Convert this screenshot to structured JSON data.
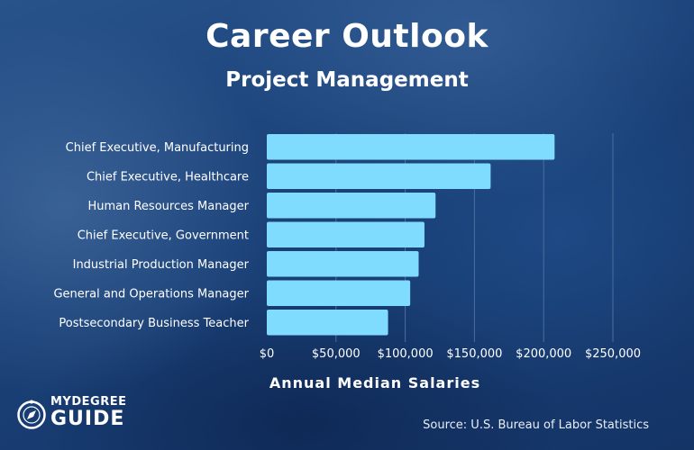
{
  "header": {
    "title": "Career Outlook",
    "subtitle": "Project Management"
  },
  "chart_data": {
    "type": "bar",
    "orientation": "horizontal",
    "categories": [
      "Chief Executive, Manufacturing",
      "Chief Executive, Healthcare",
      "Human Resources Manager",
      "Chief Executive, Government",
      "Industrial Production Manager",
      "General and Operations Manager",
      "Postsecondary Business Teacher"
    ],
    "values": [
      207900,
      161700,
      121900,
      113900,
      109700,
      103600,
      87600
    ],
    "xlim": [
      0,
      250000
    ],
    "xticks": [
      0,
      50000,
      100000,
      150000,
      200000,
      250000
    ],
    "xtick_labels": [
      "$0",
      "$50,000",
      "$100,000",
      "$150,000",
      "$200,000",
      "$250,000"
    ],
    "xlabel": "Annual Median Salaries",
    "grid": true,
    "bar_color": "#7fdcff"
  },
  "footer": {
    "source": "Source: U.S. Bureau of Labor Statistics",
    "logo_top": "MYDEGREE",
    "logo_bottom": "GUIDE"
  },
  "colors": {
    "background": "#1a4178",
    "text": "#ffffff",
    "gridline": "#4b6f9d"
  },
  "icons": {
    "logo": "compass-icon"
  }
}
